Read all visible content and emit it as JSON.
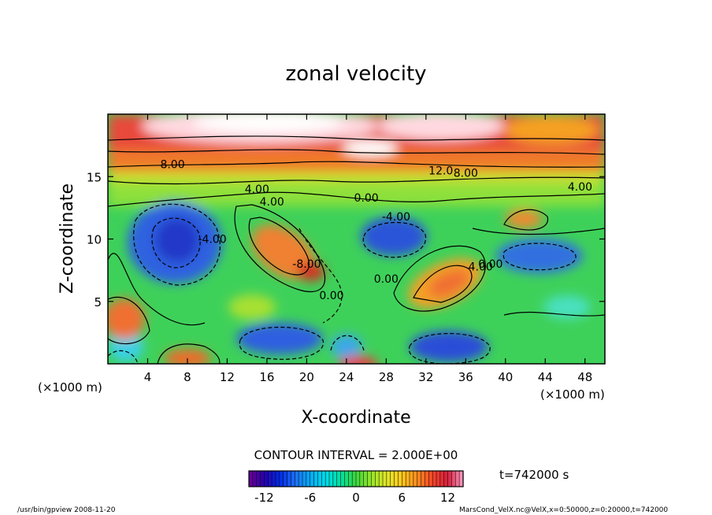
{
  "chart_data": {
    "type": "heatmap",
    "title": "zonal velocity",
    "xlabel": "X-coordinate",
    "ylabel": "Z-coordinate",
    "x_unit_left": "(×1000 m)",
    "x_unit_right": "(×1000 m)",
    "xlim": [
      0,
      50
    ],
    "ylim": [
      0,
      20
    ],
    "x_ticks": [
      "4",
      "8",
      "12",
      "16",
      "20",
      "24",
      "28",
      "32",
      "36",
      "40",
      "44",
      "48"
    ],
    "y_ticks": [
      "5",
      "10",
      "15"
    ],
    "contour_interval_text": "CONTOUR INTERVAL = 2.000E+00",
    "contour_labels": [
      {
        "text": "8.00",
        "x": 6.5,
        "z": 16.0
      },
      {
        "text": "12.0",
        "x": 33.5,
        "z": 15.5
      },
      {
        "text": "8.00",
        "x": 36.0,
        "z": 15.3
      },
      {
        "text": "4.00",
        "x": 47.5,
        "z": 14.2
      },
      {
        "text": "4.00",
        "x": 15.0,
        "z": 14.0
      },
      {
        "text": "4.00",
        "x": 16.5,
        "z": 13.0
      },
      {
        "text": "-4.00",
        "x": 10.5,
        "z": 10.0
      },
      {
        "text": "0.00",
        "x": 26.0,
        "z": 13.3
      },
      {
        "text": "-4.00",
        "x": 29.0,
        "z": 11.8
      },
      {
        "text": "-8.00",
        "x": 20.0,
        "z": 8.0
      },
      {
        "text": "0.00",
        "x": 22.5,
        "z": 5.5
      },
      {
        "text": "0.00",
        "x": 28.0,
        "z": 6.8
      },
      {
        "text": "0.00",
        "x": 38.5,
        "z": 8.0
      },
      {
        "text": "4.00",
        "x": 37.5,
        "z": 7.8
      }
    ],
    "colorbar": {
      "min": -14,
      "max": 14,
      "tick_labels": [
        "-12",
        "-6",
        "0",
        "6",
        "12"
      ],
      "tick_values": [
        -12,
        -6,
        0,
        6,
        12
      ]
    },
    "time_label": "t=742000 s",
    "footer_left": "/usr/bin/gpview  2008-11-20",
    "footer_right": "MarsCond_VelX.nc@VelX,x=0:50000,z=0:20000,t=742000"
  }
}
